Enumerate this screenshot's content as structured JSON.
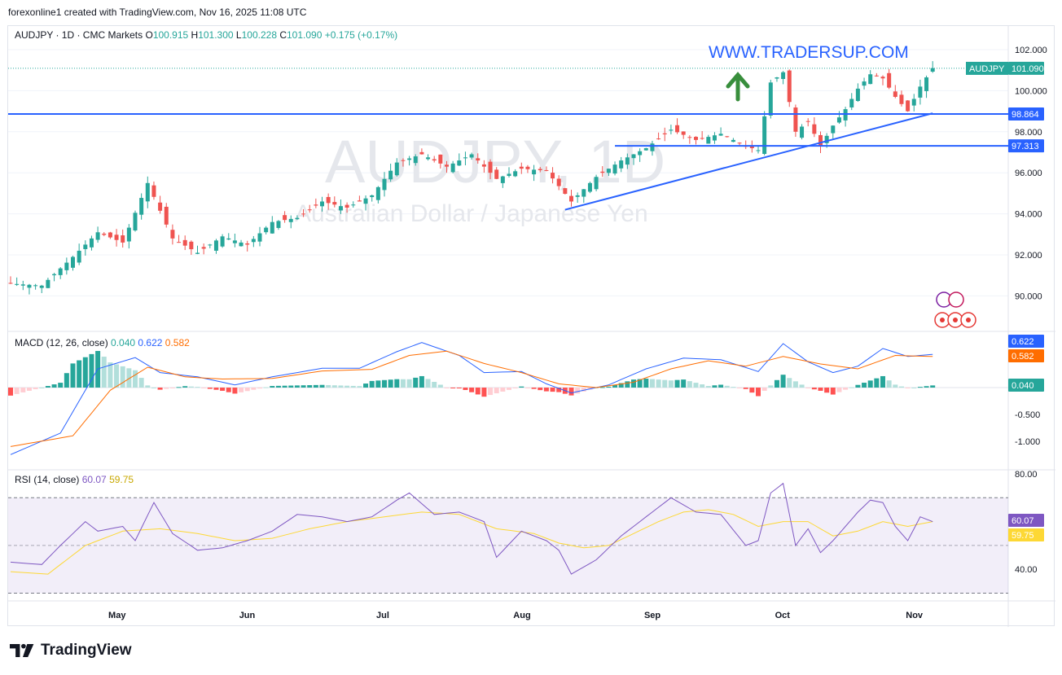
{
  "credit": "forexonline1 created with TradingView.com, Nov 16, 2025 11:08 UTC",
  "legend": {
    "symbol": "AUDJPY · 1D · CMC Markets",
    "o_label": "O",
    "o": "100.915",
    "h_label": "H",
    "h": "101.300",
    "l_label": "L",
    "l": "100.228",
    "c_label": "C",
    "c": "101.090",
    "change": "+0.175 (+0.17%)"
  },
  "watermark": {
    "symbol": "AUDJPY, 1D",
    "description": "Australian Dollar / Japanese Yen"
  },
  "promo_text": "WWW.TRADERSUP.COM",
  "footer_brand": "TradingView",
  "colors": {
    "up": "#26a69a",
    "down": "#ef5350",
    "level_line": "#2962ff",
    "macd": "#2962ff",
    "signal": "#ff6d00",
    "hist_up_strong": "#26a69a",
    "hist_up_weak": "#b2dfdb",
    "hist_down_strong": "#ff5252",
    "hist_down_weak": "#ffcdd2",
    "rsi": "#7e57c2",
    "rsi_ma": "#fdd835",
    "arrow": "#388e3c",
    "promo": "#2962ff"
  },
  "chart_data": [
    {
      "type": "candlestick",
      "title": "AUDJPY · 1D · CMC Markets",
      "ylim": [
        88.4,
        102.6
      ],
      "yticks": [
        "102.000",
        "100.000",
        "98.000",
        "96.000",
        "94.000",
        "92.000",
        "90.000"
      ],
      "x_labels": [
        "May",
        "Jun",
        "Jul",
        "Aug",
        "Sep",
        "Oct",
        "Nov"
      ],
      "last_price_label": {
        "symbol": "AUDJPY",
        "value": "101.090"
      },
      "levels": [
        {
          "value": 98.864,
          "label": "98.864",
          "from": "start"
        },
        {
          "value": 97.313,
          "label": "97.313",
          "from": "Sep"
        }
      ],
      "trendline": {
        "from": [
          "2025-08-19",
          94.2
        ],
        "to": [
          "2025-11-14",
          98.9
        ]
      },
      "close_anchors": [
        [
          0,
          90.6
        ],
        [
          5,
          90.5
        ],
        [
          10,
          91.9
        ],
        [
          14,
          93.1
        ],
        [
          18,
          92.6
        ],
        [
          22,
          95.5
        ],
        [
          26,
          92.8
        ],
        [
          30,
          92.1
        ],
        [
          34,
          92.9
        ],
        [
          38,
          92.5
        ],
        [
          42,
          93.6
        ],
        [
          46,
          93.8
        ],
        [
          50,
          94.6
        ],
        [
          54,
          94.3
        ],
        [
          58,
          94.9
        ],
        [
          62,
          96.5
        ],
        [
          66,
          96.9
        ],
        [
          70,
          96.3
        ],
        [
          74,
          96.9
        ],
        [
          78,
          95.7
        ],
        [
          82,
          96.2
        ],
        [
          86,
          96.1
        ],
        [
          90,
          94.6
        ],
        [
          94,
          95.8
        ],
        [
          98,
          96.6
        ],
        [
          102,
          97.2
        ],
        [
          106,
          98.1
        ],
        [
          110,
          97.6
        ],
        [
          114,
          97.9
        ],
        [
          118,
          97.3
        ],
        [
          120,
          97.1
        ],
        [
          122,
          100.4
        ],
        [
          124,
          100.9
        ],
        [
          126,
          98.0
        ],
        [
          128,
          98.5
        ],
        [
          130,
          97.3
        ],
        [
          132,
          98.3
        ],
        [
          134,
          99.1
        ],
        [
          136,
          100.1
        ],
        [
          138,
          100.8
        ],
        [
          140,
          100.6
        ],
        [
          142,
          99.7
        ],
        [
          144,
          99.0
        ],
        [
          146,
          100.2
        ],
        [
          148,
          101.1
        ]
      ]
    },
    {
      "type": "line",
      "title": "MACD (12, 26, close)",
      "values_label": [
        "0.040",
        "0.622",
        "0.582"
      ],
      "ylim": [
        -1.25,
        1.05
      ],
      "yticks": [
        "-0.500",
        "-1.000"
      ],
      "price_labels": {
        "macd": "0.622",
        "signal": "0.582",
        "histogram": "0.040"
      },
      "series": [
        {
          "name": "MACD",
          "anchors": [
            [
              0,
              -1.25
            ],
            [
              8,
              -0.85
            ],
            [
              14,
              0.35
            ],
            [
              20,
              0.56
            ],
            [
              24,
              0.28
            ],
            [
              30,
              0.2
            ],
            [
              36,
              0.05
            ],
            [
              42,
              0.2
            ],
            [
              50,
              0.36
            ],
            [
              56,
              0.36
            ],
            [
              62,
              0.67
            ],
            [
              66,
              0.84
            ],
            [
              72,
              0.6
            ],
            [
              76,
              0.28
            ],
            [
              82,
              0.3
            ],
            [
              86,
              0.07
            ],
            [
              90,
              -0.1
            ],
            [
              96,
              0.05
            ],
            [
              102,
              0.35
            ],
            [
              108,
              0.55
            ],
            [
              114,
              0.52
            ],
            [
              120,
              0.3
            ],
            [
              124,
              0.82
            ],
            [
              128,
              0.48
            ],
            [
              132,
              0.28
            ],
            [
              136,
              0.4
            ],
            [
              140,
              0.73
            ],
            [
              144,
              0.58
            ],
            [
              148,
              0.62
            ]
          ]
        },
        {
          "name": "Signal",
          "anchors": [
            [
              0,
              -1.1
            ],
            [
              10,
              -0.9
            ],
            [
              16,
              -0.05
            ],
            [
              22,
              0.38
            ],
            [
              28,
              0.2
            ],
            [
              34,
              0.16
            ],
            [
              42,
              0.17
            ],
            [
              50,
              0.31
            ],
            [
              58,
              0.34
            ],
            [
              64,
              0.6
            ],
            [
              70,
              0.68
            ],
            [
              76,
              0.45
            ],
            [
              82,
              0.28
            ],
            [
              88,
              0.07
            ],
            [
              94,
              0.0
            ],
            [
              100,
              0.1
            ],
            [
              106,
              0.35
            ],
            [
              112,
              0.5
            ],
            [
              118,
              0.4
            ],
            [
              124,
              0.58
            ],
            [
              130,
              0.44
            ],
            [
              136,
              0.35
            ],
            [
              142,
              0.6
            ],
            [
              148,
              0.58
            ]
          ]
        }
      ]
    },
    {
      "type": "line",
      "title": "RSI (14, close)",
      "values_label": [
        "60.07",
        "59.75"
      ],
      "ylim": [
        24,
        83
      ],
      "yticks": [
        "80.00",
        "40.00"
      ],
      "band": [
        30,
        70
      ],
      "price_labels": {
        "rsi": "60.07",
        "rsi_ma": "59.75"
      },
      "series": [
        {
          "name": "RSI",
          "anchors": [
            [
              0,
              43
            ],
            [
              5,
              42
            ],
            [
              8,
              50
            ],
            [
              12,
              60
            ],
            [
              14,
              56
            ],
            [
              18,
              58
            ],
            [
              20,
              52
            ],
            [
              23,
              68
            ],
            [
              26,
              55
            ],
            [
              30,
              48
            ],
            [
              34,
              49
            ],
            [
              38,
              52
            ],
            [
              42,
              56
            ],
            [
              46,
              63
            ],
            [
              50,
              62
            ],
            [
              54,
              60
            ],
            [
              58,
              62
            ],
            [
              62,
              69
            ],
            [
              64,
              72
            ],
            [
              68,
              63
            ],
            [
              72,
              64
            ],
            [
              76,
              60
            ],
            [
              78,
              45
            ],
            [
              82,
              56
            ],
            [
              86,
              52
            ],
            [
              88,
              48
            ],
            [
              90,
              38
            ],
            [
              94,
              44
            ],
            [
              98,
              54
            ],
            [
              102,
              62
            ],
            [
              106,
              70
            ],
            [
              110,
              64
            ],
            [
              114,
              63
            ],
            [
              118,
              50
            ],
            [
              120,
              52
            ],
            [
              122,
              72
            ],
            [
              124,
              76
            ],
            [
              126,
              50
            ],
            [
              128,
              57
            ],
            [
              130,
              47
            ],
            [
              132,
              52
            ],
            [
              134,
              58
            ],
            [
              136,
              64
            ],
            [
              138,
              69
            ],
            [
              140,
              68
            ],
            [
              142,
              58
            ],
            [
              144,
              52
            ],
            [
              146,
              62
            ],
            [
              148,
              60
            ]
          ]
        },
        {
          "name": "RSI MA",
          "anchors": [
            [
              0,
              39
            ],
            [
              6,
              38
            ],
            [
              12,
              50
            ],
            [
              18,
              56
            ],
            [
              24,
              57
            ],
            [
              30,
              55
            ],
            [
              36,
              52
            ],
            [
              42,
              53
            ],
            [
              48,
              57
            ],
            [
              54,
              60
            ],
            [
              60,
              62
            ],
            [
              66,
              64
            ],
            [
              72,
              63
            ],
            [
              78,
              57
            ],
            [
              84,
              55
            ],
            [
              88,
              51
            ],
            [
              92,
              49
            ],
            [
              96,
              50
            ],
            [
              100,
              55
            ],
            [
              104,
              60
            ],
            [
              108,
              64
            ],
            [
              112,
              65
            ],
            [
              116,
              63
            ],
            [
              120,
              58
            ],
            [
              124,
              60
            ],
            [
              128,
              60
            ],
            [
              132,
              54
            ],
            [
              136,
              56
            ],
            [
              140,
              60
            ],
            [
              144,
              58
            ],
            [
              148,
              60
            ]
          ]
        }
      ]
    }
  ]
}
